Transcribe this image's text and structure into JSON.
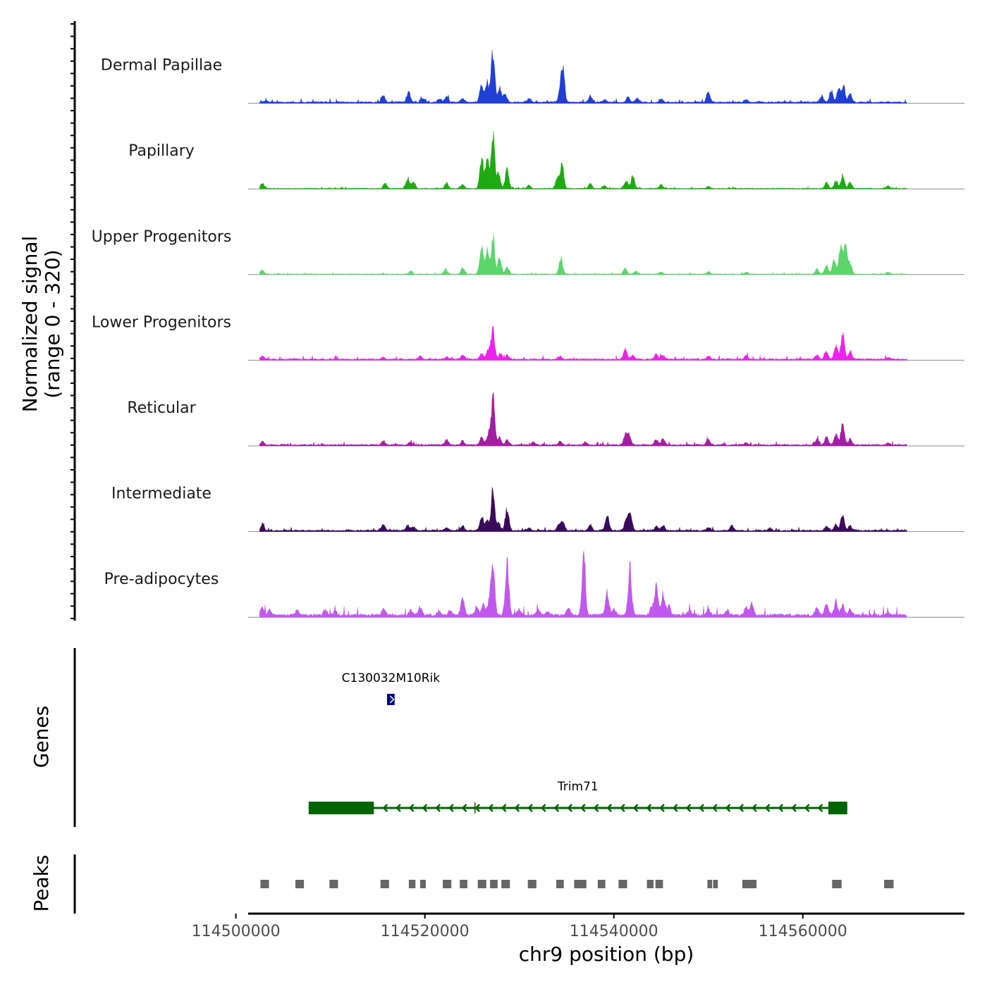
{
  "chart_data": {
    "type": "area",
    "subtype": "genome-coverage-track",
    "region": {
      "chromosome": "chr9",
      "start": 114501300,
      "end": 114577100
    },
    "y_axis": {
      "label_line1": "Normalized signal",
      "label_line2": "(range 0 - 320)",
      "range": [
        0,
        320
      ]
    },
    "x_axis": {
      "label": "chr9 position (bp)",
      "ticks": [
        114500000,
        114520000,
        114540000,
        114560000
      ],
      "tick_labels": [
        "114500000",
        "114520000",
        "114540000",
        "114560000"
      ]
    },
    "signal_x_range": [
      114502500,
      114571000
    ],
    "tracks": [
      {
        "name": "Dermal Papillae",
        "color": "#1f3fd6",
        "baseline": 2,
        "peaks": [
          [
            114503200,
            2
          ],
          [
            114515600,
            12
          ],
          [
            114518300,
            20
          ],
          [
            114519800,
            8
          ],
          [
            114521500,
            6
          ],
          [
            114522300,
            12
          ],
          [
            114524000,
            8
          ],
          [
            114526000,
            35
          ],
          [
            114526600,
            38
          ],
          [
            114527200,
            100
          ],
          [
            114527900,
            30
          ],
          [
            114528500,
            15
          ],
          [
            114531000,
            6
          ],
          [
            114534300,
            18
          ],
          [
            114534600,
            65
          ],
          [
            114537500,
            12
          ],
          [
            114539000,
            5
          ],
          [
            114541500,
            10
          ],
          [
            114542500,
            8
          ],
          [
            114545000,
            6
          ],
          [
            114550000,
            20
          ],
          [
            114554000,
            6
          ],
          [
            114562000,
            12
          ],
          [
            114563000,
            22
          ],
          [
            114563800,
            25
          ],
          [
            114564300,
            30
          ],
          [
            114565000,
            15
          ]
        ]
      },
      {
        "name": "Papillary",
        "color": "#1faa12",
        "baseline": 1,
        "peaks": [
          [
            114502800,
            10
          ],
          [
            114515800,
            10
          ],
          [
            114518200,
            22
          ],
          [
            114518800,
            12
          ],
          [
            114522300,
            10
          ],
          [
            114524000,
            8
          ],
          [
            114526000,
            60
          ],
          [
            114526600,
            55
          ],
          [
            114527200,
            102
          ],
          [
            114527800,
            30
          ],
          [
            114528700,
            38
          ],
          [
            114531000,
            6
          ],
          [
            114534000,
            20
          ],
          [
            114534500,
            50
          ],
          [
            114537500,
            10
          ],
          [
            114539000,
            5
          ],
          [
            114541300,
            15
          ],
          [
            114542000,
            25
          ],
          [
            114545000,
            8
          ],
          [
            114550000,
            4
          ],
          [
            114562500,
            12
          ],
          [
            114563500,
            15
          ],
          [
            114564200,
            25
          ],
          [
            114565000,
            12
          ],
          [
            114569000,
            5
          ]
        ]
      },
      {
        "name": "Upper Progenitors",
        "color": "#5ad66a",
        "baseline": 1,
        "peaks": [
          [
            114502800,
            8
          ],
          [
            114518500,
            6
          ],
          [
            114522200,
            10
          ],
          [
            114524000,
            12
          ],
          [
            114526000,
            55
          ],
          [
            114526600,
            45
          ],
          [
            114527200,
            70
          ],
          [
            114527900,
            30
          ],
          [
            114528700,
            15
          ],
          [
            114534400,
            32
          ],
          [
            114541200,
            12
          ],
          [
            114542300,
            6
          ],
          [
            114545000,
            4
          ],
          [
            114550000,
            5
          ],
          [
            114554000,
            4
          ],
          [
            114561500,
            10
          ],
          [
            114562500,
            18
          ],
          [
            114563300,
            30
          ],
          [
            114564000,
            50
          ],
          [
            114564500,
            55
          ],
          [
            114565000,
            20
          ],
          [
            114569000,
            4
          ]
        ]
      },
      {
        "name": "Lower Progenitors",
        "color": "#ee22ee",
        "baseline": 2,
        "peaks": [
          [
            114502800,
            6
          ],
          [
            114515600,
            4
          ],
          [
            114519500,
            6
          ],
          [
            114522300,
            5
          ],
          [
            114524000,
            8
          ],
          [
            114526000,
            12
          ],
          [
            114526700,
            18
          ],
          [
            114527200,
            58
          ],
          [
            114528000,
            12
          ],
          [
            114528700,
            8
          ],
          [
            114534300,
            5
          ],
          [
            114541200,
            20
          ],
          [
            114542000,
            8
          ],
          [
            114544500,
            10
          ],
          [
            114545200,
            8
          ],
          [
            114550000,
            6
          ],
          [
            114554000,
            6
          ],
          [
            114561500,
            8
          ],
          [
            114562500,
            15
          ],
          [
            114563500,
            25
          ],
          [
            114564200,
            48
          ],
          [
            114565000,
            15
          ],
          [
            114569000,
            4
          ]
        ]
      },
      {
        "name": "Reticular",
        "color": "#a31ea3",
        "baseline": 2,
        "peaks": [
          [
            114502800,
            6
          ],
          [
            114515600,
            8
          ],
          [
            114518500,
            6
          ],
          [
            114522300,
            10
          ],
          [
            114524000,
            8
          ],
          [
            114526000,
            15
          ],
          [
            114526700,
            20
          ],
          [
            114527200,
            92
          ],
          [
            114527900,
            15
          ],
          [
            114528700,
            10
          ],
          [
            114531500,
            6
          ],
          [
            114534300,
            8
          ],
          [
            114537000,
            5
          ],
          [
            114541200,
            18
          ],
          [
            114541600,
            20
          ],
          [
            114544500,
            10
          ],
          [
            114545200,
            12
          ],
          [
            114550000,
            10
          ],
          [
            114554000,
            5
          ],
          [
            114561500,
            10
          ],
          [
            114562500,
            15
          ],
          [
            114563500,
            22
          ],
          [
            114564200,
            40
          ],
          [
            114565000,
            12
          ],
          [
            114569000,
            3
          ]
        ]
      },
      {
        "name": "Intermediate",
        "color": "#3c0a5c",
        "baseline": 2,
        "peaks": [
          [
            114502800,
            10
          ],
          [
            114515600,
            12
          ],
          [
            114518200,
            10
          ],
          [
            114518800,
            8
          ],
          [
            114522300,
            6
          ],
          [
            114524000,
            10
          ],
          [
            114526000,
            28
          ],
          [
            114526600,
            20
          ],
          [
            114527200,
            82
          ],
          [
            114527800,
            15
          ],
          [
            114528700,
            42
          ],
          [
            114531000,
            6
          ],
          [
            114534200,
            12
          ],
          [
            114534600,
            18
          ],
          [
            114537500,
            12
          ],
          [
            114539300,
            32
          ],
          [
            114541300,
            20
          ],
          [
            114541700,
            40
          ],
          [
            114544500,
            8
          ],
          [
            114545200,
            10
          ],
          [
            114550000,
            6
          ],
          [
            114552500,
            10
          ],
          [
            114556500,
            5
          ],
          [
            114562500,
            8
          ],
          [
            114563500,
            12
          ],
          [
            114564200,
            30
          ],
          [
            114565000,
            10
          ]
        ]
      },
      {
        "name": "Pre-adipocytes",
        "color": "#c158ee",
        "baseline": 4,
        "peaks": [
          [
            114502800,
            15
          ],
          [
            114503600,
            12
          ],
          [
            114506500,
            8
          ],
          [
            114509500,
            10
          ],
          [
            114510500,
            8
          ],
          [
            114515600,
            12
          ],
          [
            114518500,
            10
          ],
          [
            114519500,
            14
          ],
          [
            114521500,
            8
          ],
          [
            114522700,
            10
          ],
          [
            114524000,
            35
          ],
          [
            114525500,
            14
          ],
          [
            114526200,
            20
          ],
          [
            114526800,
            25
          ],
          [
            114527200,
            95
          ],
          [
            114528700,
            100
          ],
          [
            114530000,
            12
          ],
          [
            114532000,
            10
          ],
          [
            114533000,
            8
          ],
          [
            114535200,
            12
          ],
          [
            114536800,
            108
          ],
          [
            114539300,
            42
          ],
          [
            114540000,
            12
          ],
          [
            114541700,
            95
          ],
          [
            114544000,
            15
          ],
          [
            114544500,
            55
          ],
          [
            114545200,
            40
          ],
          [
            114545800,
            20
          ],
          [
            114548000,
            10
          ],
          [
            114550000,
            12
          ],
          [
            114552000,
            10
          ],
          [
            114554000,
            15
          ],
          [
            114554600,
            22
          ],
          [
            114561500,
            15
          ],
          [
            114562500,
            22
          ],
          [
            114563500,
            25
          ],
          [
            114564200,
            20
          ],
          [
            114565000,
            12
          ],
          [
            114569000,
            6
          ]
        ]
      }
    ],
    "genes_track": {
      "label": "Genes",
      "genes": [
        {
          "name": "C130032M10Rik",
          "color": "#00008b",
          "start": 114516000,
          "end": 114516800,
          "strand": "+",
          "exons": [
            [
              114516000,
              114516800
            ]
          ]
        },
        {
          "name": "Trim71",
          "color": "#006400",
          "start": 114507700,
          "end": 114564700,
          "strand": "-",
          "exons": [
            [
              114507700,
              114514600
            ],
            [
              114562700,
              114564700
            ]
          ],
          "extra_tick": 114525300
        }
      ]
    },
    "peaks_track": {
      "label": "Peaks",
      "color": "#666666",
      "regions": [
        [
          114502600,
          114503500
        ],
        [
          114506300,
          114507200
        ],
        [
          114509900,
          114510800
        ],
        [
          114515300,
          114516200
        ],
        [
          114518300,
          114519000
        ],
        [
          114519500,
          114520100
        ],
        [
          114521900,
          114522800
        ],
        [
          114523700,
          114524500
        ],
        [
          114525600,
          114526500
        ],
        [
          114526900,
          114527700
        ],
        [
          114528100,
          114529000
        ],
        [
          114530900,
          114531800
        ],
        [
          114533900,
          114534700
        ],
        [
          114535800,
          114537100
        ],
        [
          114538300,
          114539100
        ],
        [
          114540500,
          114541400
        ],
        [
          114543500,
          114544200
        ],
        [
          114544400,
          114545200
        ],
        [
          114549900,
          114550400
        ],
        [
          114550500,
          114551000
        ],
        [
          114553600,
          114555100
        ],
        [
          114563100,
          114564100
        ],
        [
          114568600,
          114569600
        ]
      ]
    }
  }
}
